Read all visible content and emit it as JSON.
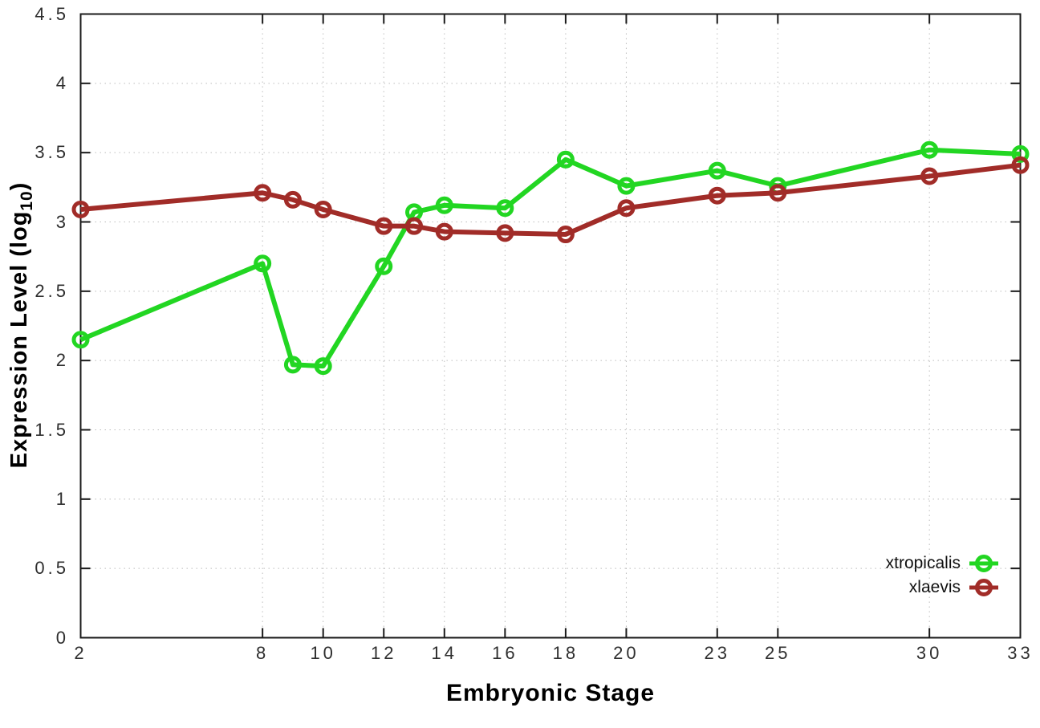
{
  "colors": {
    "background": "#ffffff",
    "axis": "#1a1a1a",
    "grid": "#bcbcbc",
    "tick_text": "#2e2e2e",
    "xtropicalis": "#22d622",
    "xlaevis": "#a12c28"
  },
  "chart_data": {
    "type": "line",
    "title": "",
    "xlabel": "Embryonic Stage",
    "ylabel": "Expression Level (log10)",
    "ylabel_parts": {
      "prefix": "Expression Level (log",
      "sub": "10",
      "suffix": ")"
    },
    "xlim": [
      2,
      33
    ],
    "ylim": [
      0,
      4.5
    ],
    "grid": true,
    "legend_position": "inside-bottom-right",
    "x_ticks": [
      {
        "value": 2,
        "label": "2"
      },
      {
        "value": 8,
        "label": "8"
      },
      {
        "value": 10,
        "label": "10"
      },
      {
        "value": 12,
        "label": "12"
      },
      {
        "value": 14,
        "label": "14"
      },
      {
        "value": 16,
        "label": "16"
      },
      {
        "value": 18,
        "label": "18"
      },
      {
        "value": 20,
        "label": "20"
      },
      {
        "value": 23,
        "label": "23"
      },
      {
        "value": 25,
        "label": "25"
      },
      {
        "value": 30,
        "label": "30"
      },
      {
        "value": 33,
        "label": "33"
      }
    ],
    "y_ticks": [
      {
        "value": 0,
        "label": "0"
      },
      {
        "value": 0.5,
        "label": "0.5"
      },
      {
        "value": 1,
        "label": "1"
      },
      {
        "value": 1.5,
        "label": "1.5"
      },
      {
        "value": 2,
        "label": "2"
      },
      {
        "value": 2.5,
        "label": "2.5"
      },
      {
        "value": 3,
        "label": "3"
      },
      {
        "value": 3.5,
        "label": "3.5"
      },
      {
        "value": 4,
        "label": "4"
      },
      {
        "value": 4.5,
        "label": "4.5"
      }
    ],
    "x": [
      2,
      8,
      9,
      10,
      12,
      13,
      14,
      16,
      18,
      20,
      23,
      25,
      30,
      33
    ],
    "series": [
      {
        "name": "xtropicalis",
        "color": "#22d622",
        "marker": "open-circle",
        "values": [
          2.15,
          2.7,
          1.97,
          1.96,
          2.68,
          3.07,
          3.12,
          3.1,
          3.45,
          3.26,
          3.37,
          3.26,
          3.52,
          3.49
        ]
      },
      {
        "name": "xlaevis",
        "color": "#a12c28",
        "marker": "open-circle",
        "values": [
          3.09,
          3.21,
          3.16,
          3.09,
          2.97,
          2.97,
          2.93,
          2.92,
          2.91,
          3.1,
          3.19,
          3.21,
          3.33,
          3.41
        ]
      }
    ]
  }
}
